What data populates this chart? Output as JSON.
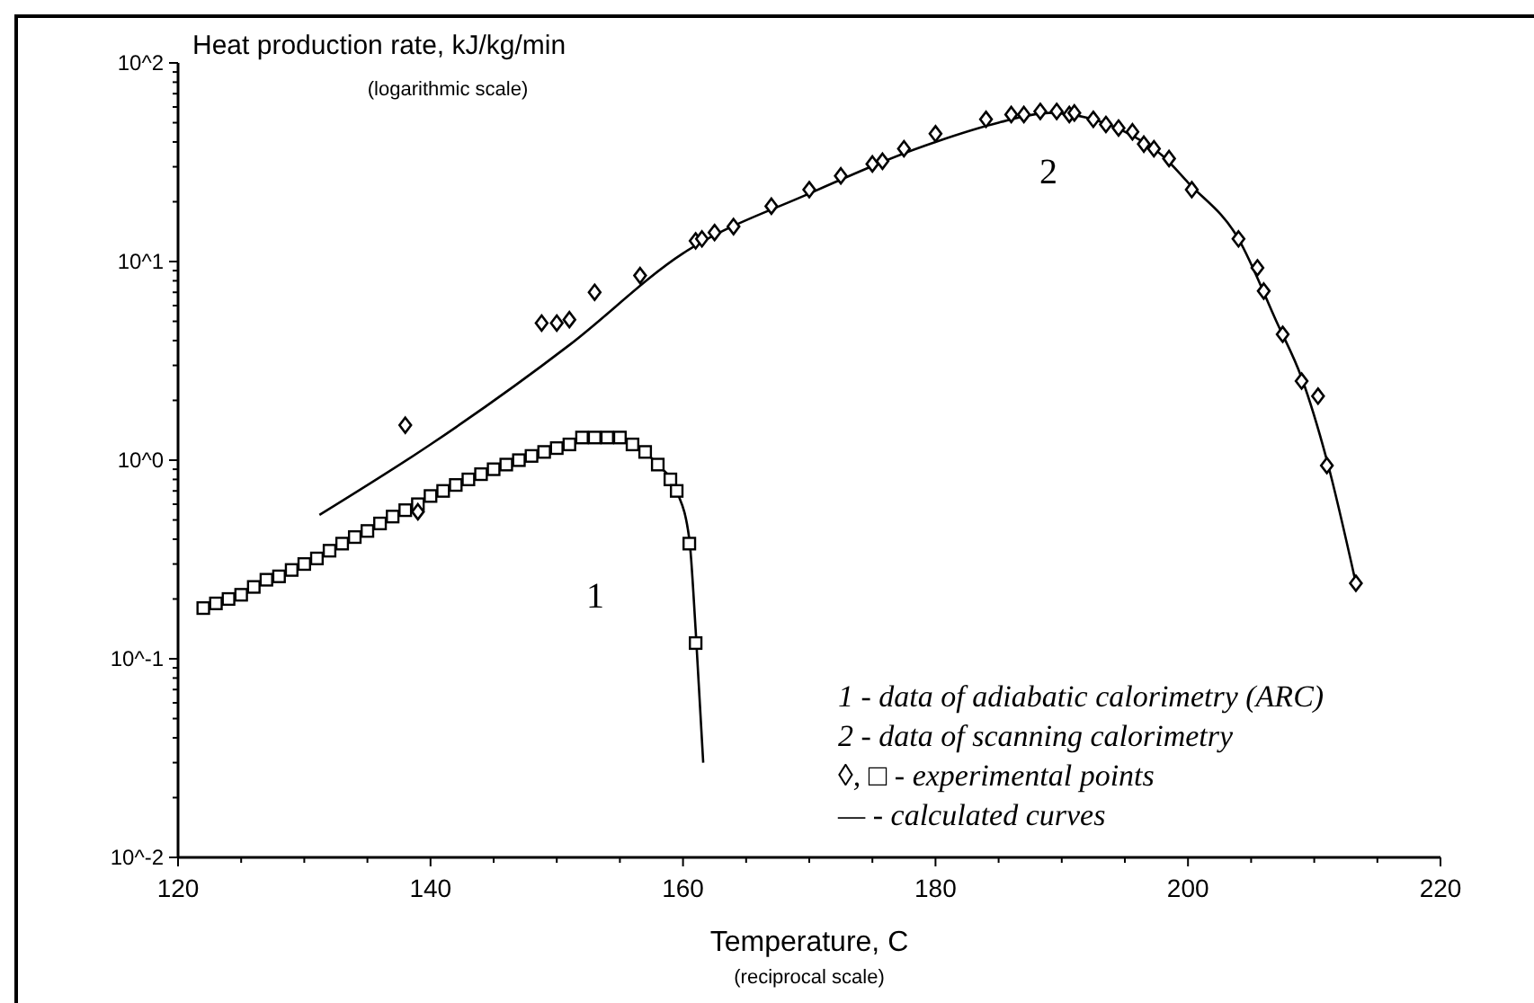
{
  "chart_data": {
    "type": "scatter",
    "ylabel": "Heat production rate, kJ/kg/min",
    "xlabel": "Temperature, C",
    "log": "y",
    "xlim": [
      120,
      220
    ],
    "xticks": [
      120,
      140,
      160,
      180,
      200,
      220
    ],
    "ylim": [
      0.01,
      100
    ],
    "yticks": [
      {
        "value": 100,
        "label": "10^2"
      },
      {
        "value": 10,
        "label": "10^1"
      },
      {
        "value": 1,
        "label": "10^0"
      },
      {
        "value": 0.1,
        "label": "10^-1"
      },
      {
        "value": 0.01,
        "label": "10^-2"
      }
    ],
    "grid": false,
    "series": [
      {
        "type": "line",
        "color": "#000000",
        "line_style": "solid",
        "marker": "none",
        "x": [
          122,
          126,
          130,
          134,
          138,
          142,
          146,
          150,
          152,
          154,
          156,
          158,
          159.5,
          160.5,
          161,
          161.6
        ],
        "values": [
          0.18,
          0.23,
          0.3,
          0.41,
          0.56,
          0.75,
          0.95,
          1.15,
          1.25,
          1.28,
          1.2,
          0.95,
          0.7,
          0.4,
          0.14,
          0.03
        ]
      },
      {
        "type": "line",
        "color": "#000000",
        "line_style": "solid",
        "marker": "none",
        "x": [
          131.2,
          140,
          151,
          160,
          170,
          180,
          185,
          189,
          192,
          195,
          198,
          200,
          204,
          207,
          209,
          211,
          213.3
        ],
        "values": [
          0.53,
          1.2,
          3.8,
          11,
          22,
          40,
          50,
          56,
          53,
          45,
          34,
          25,
          13,
          5,
          2.6,
          1.0,
          0.24
        ]
      },
      {
        "type": "scatter",
        "color": "#000000",
        "marker": "square",
        "x": [
          122,
          123,
          124,
          125,
          126,
          127,
          128,
          129,
          130,
          131,
          132,
          133,
          134,
          135,
          136,
          137,
          138,
          139,
          140,
          141,
          142,
          143,
          144,
          145,
          146,
          147,
          148,
          149,
          150,
          151,
          152,
          153,
          154,
          155,
          156,
          157,
          158,
          159,
          159.5,
          160.5,
          161
        ],
        "values": [
          0.18,
          0.19,
          0.2,
          0.21,
          0.23,
          0.25,
          0.26,
          0.28,
          0.3,
          0.32,
          0.35,
          0.38,
          0.41,
          0.44,
          0.48,
          0.52,
          0.56,
          0.6,
          0.66,
          0.7,
          0.75,
          0.8,
          0.85,
          0.9,
          0.95,
          1.0,
          1.05,
          1.1,
          1.15,
          1.2,
          1.3,
          1.3,
          1.3,
          1.3,
          1.2,
          1.1,
          0.95,
          0.8,
          0.7,
          0.38,
          0.12
        ]
      },
      {
        "type": "scatter",
        "color": "#000000",
        "marker": "diamond",
        "x": [
          138,
          139,
          148.8,
          150,
          151,
          153,
          156.6,
          161,
          161.5,
          162.5,
          164,
          167,
          170,
          172.5,
          175,
          175.8,
          177.5,
          180,
          184,
          186,
          187,
          188.3,
          189.6,
          190.6,
          191,
          192.5,
          193.5,
          194.5,
          195.6,
          196.5,
          197.3,
          198.5,
          200.3,
          204,
          205.5,
          206,
          207.5,
          209,
          210.3,
          211,
          213.3
        ],
        "values": [
          1.5,
          0.55,
          4.9,
          4.9,
          5.1,
          7.0,
          8.5,
          12.7,
          13,
          14,
          15,
          19,
          23,
          27,
          31,
          32,
          37,
          44,
          52,
          55,
          55,
          57,
          57,
          55,
          56,
          52,
          49,
          47,
          45,
          39,
          37,
          33,
          23,
          13,
          9.3,
          7.1,
          4.3,
          2.5,
          2.1,
          0.94,
          0.24
        ]
      }
    ],
    "annotations": [
      "1",
      "2",
      "(logarithmic scale)",
      "(reciprocal scale)",
      "1 - data of adiabatic calorimetry (ARC)",
      "2 - data of scanning calorimetry",
      "◊, □ - experimental points",
      "— - calculated curves"
    ]
  }
}
